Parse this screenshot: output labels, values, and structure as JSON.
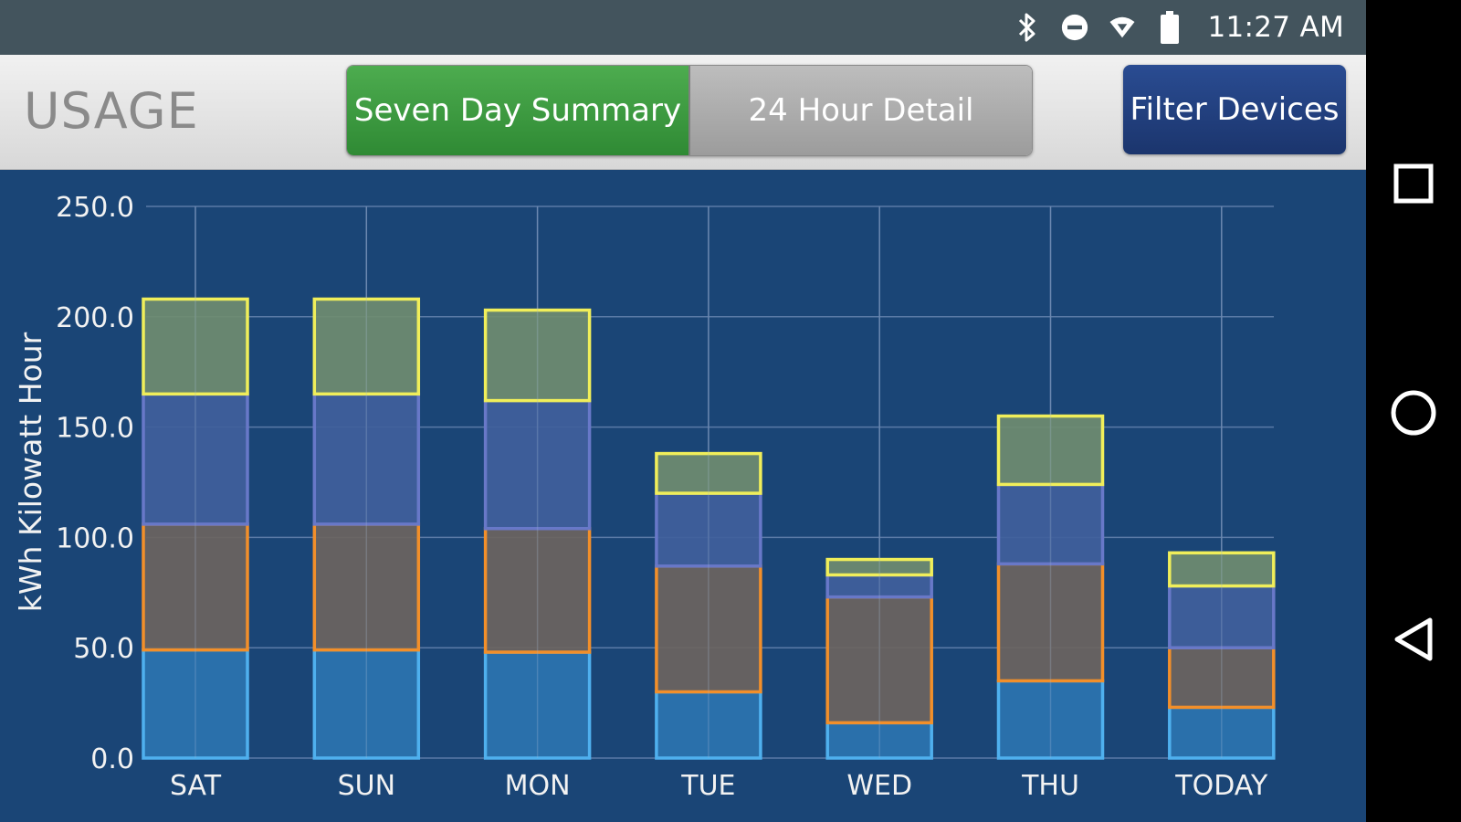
{
  "status_bar": {
    "time": "11:27 AM",
    "icons": [
      "bluetooth-icon",
      "do-not-disturb-icon",
      "wifi-icon",
      "battery-icon"
    ]
  },
  "header": {
    "title": "USAGE",
    "tabs": [
      {
        "label": "Seven Day Summary",
        "active": true
      },
      {
        "label": "24 Hour Detail",
        "active": false
      }
    ],
    "filter_button": "Filter Devices"
  },
  "nav_bar": {
    "icons": [
      "recents-square-icon",
      "home-circle-icon",
      "back-triangle-icon"
    ]
  },
  "colors": {
    "chart_background": "#1a4576",
    "grid": "#5a7aa6",
    "series_fill": [
      "#2b74b0",
      "#6b6460",
      "#40609c",
      "#6f8c70"
    ],
    "series_stroke": [
      "#4fb0ee",
      "#f28f2a",
      "#6878c8",
      "#f0ee5a"
    ]
  },
  "chart_data": {
    "type": "bar",
    "stacked": true,
    "categories": [
      "SAT",
      "SUN",
      "MON",
      "TUE",
      "WED",
      "THU",
      "TODAY"
    ],
    "series": [
      {
        "values": [
          49,
          49,
          48,
          30,
          16,
          35,
          23
        ]
      },
      {
        "values": [
          57,
          57,
          56,
          57,
          57,
          53,
          27
        ]
      },
      {
        "values": [
          59,
          59,
          58,
          33,
          10,
          36,
          28
        ]
      },
      {
        "values": [
          43,
          43,
          41,
          18,
          7,
          31,
          15
        ]
      }
    ],
    "ylabel": "kWh Kilowatt Hour",
    "ylim": [
      0,
      250
    ],
    "yticks": [
      "0.0",
      "50.0",
      "100.0",
      "150.0",
      "200.0",
      "250.0"
    ],
    "grid": true
  }
}
